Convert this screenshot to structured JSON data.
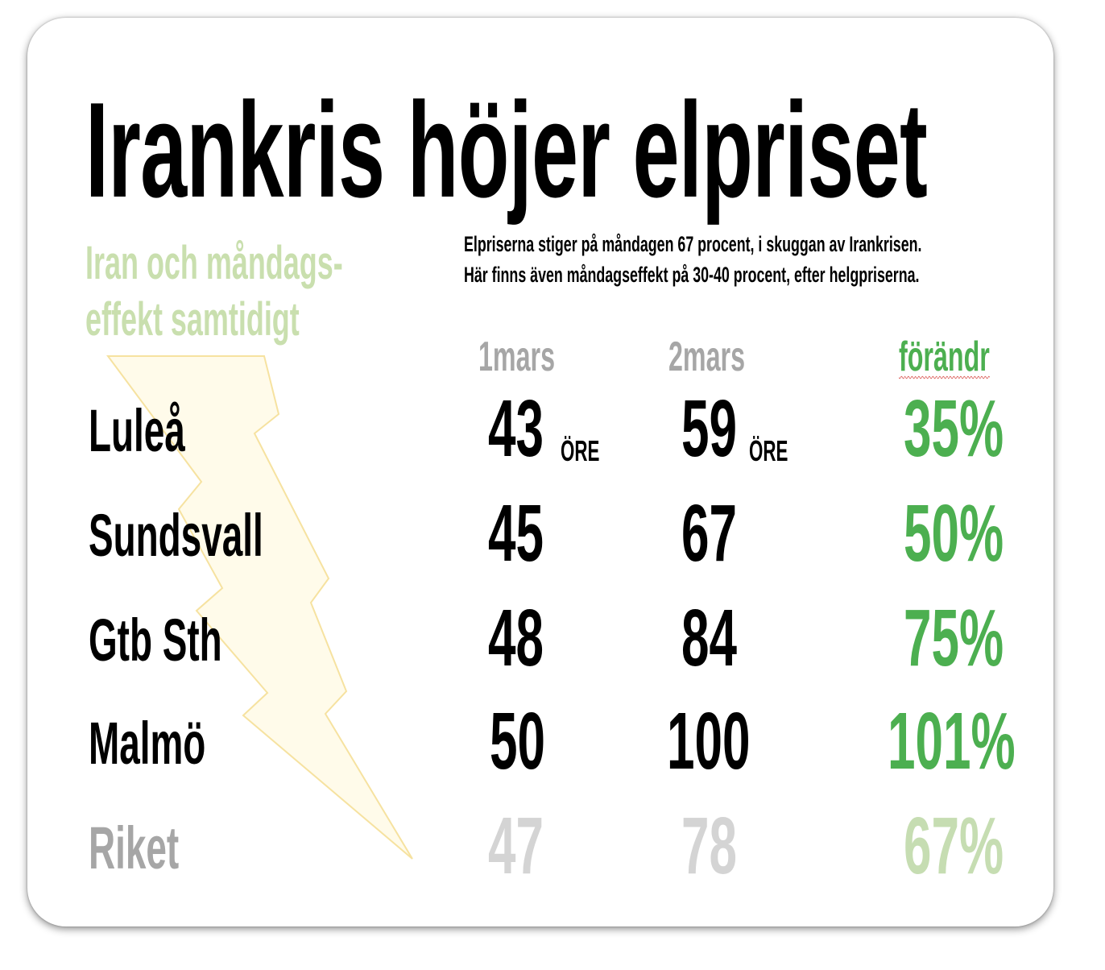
{
  "title": "Irankris höjer elpriset",
  "subhead": {
    "line1": "Iran och måndags-",
    "line2": "effekt samtidigt"
  },
  "intro": {
    "line1": "Elpriserna stiger på måndagen 67 procent, i  skuggan av Irankrisen.",
    "line2": "Här finns även måndagseffekt på 30-40 procent, efter helgpriserna."
  },
  "columns": {
    "date1": "1mars",
    "date2": "2mars",
    "change": "förändr"
  },
  "unit": "ÖRE",
  "rows": [
    {
      "city": "Luleå",
      "mar1": "43",
      "mar2": "59",
      "change": "35%"
    },
    {
      "city": "Sundsvall",
      "mar1": "45",
      "mar2": "67",
      "change": "50%"
    },
    {
      "city": "Gtb Sth",
      "mar1": "48",
      "mar2": "84",
      "change": "75%"
    },
    {
      "city": "Malmö",
      "mar1": "50",
      "mar2": "100",
      "change": "101%"
    },
    {
      "city": "Riket",
      "mar1": "47",
      "mar2": "78",
      "change": "67%"
    }
  ],
  "colors": {
    "accent_green": "#4caf50",
    "subhead_green": "#c9dfae",
    "bolt_fill": "#fffbea",
    "bolt_stroke": "#f6e2a0",
    "muted_grey": "#a6a6a6"
  },
  "icons": {
    "bolt": "lightning-bolt-icon"
  }
}
